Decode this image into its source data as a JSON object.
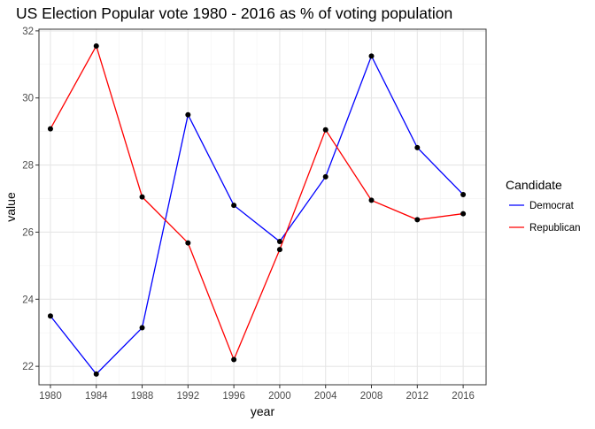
{
  "chart_data": {
    "type": "line",
    "title": "US Election Popular vote 1980 - 2016 as % of voting population",
    "xlabel": "year",
    "ylabel": "value",
    "x": [
      1980,
      1984,
      1988,
      1992,
      1996,
      2000,
      2004,
      2008,
      2012,
      2016
    ],
    "x_tick_labels": [
      "1980",
      "1984",
      "1988",
      "1992",
      "1996",
      "2000",
      "2004",
      "2008",
      "2012",
      "2016"
    ],
    "y_ticks": [
      22,
      24,
      26,
      28,
      30,
      32
    ],
    "y_tick_labels": [
      "22",
      "24",
      "26",
      "28",
      "30",
      "32"
    ],
    "xlim": [
      1979,
      2018
    ],
    "ylim": [
      21.45,
      32.05
    ],
    "grid": true,
    "legend_title": "Candidate",
    "legend_position": "right",
    "series": [
      {
        "name": "Democrat",
        "color": "#0000ff",
        "values": [
          23.5,
          21.77,
          23.15,
          29.5,
          26.8,
          25.72,
          27.65,
          31.25,
          28.52,
          27.12
        ]
      },
      {
        "name": "Republican",
        "color": "#ff0000",
        "values": [
          29.08,
          31.55,
          27.05,
          25.68,
          22.2,
          25.48,
          29.05,
          26.95,
          26.37,
          26.55
        ]
      }
    ],
    "point_color": "#000000"
  }
}
